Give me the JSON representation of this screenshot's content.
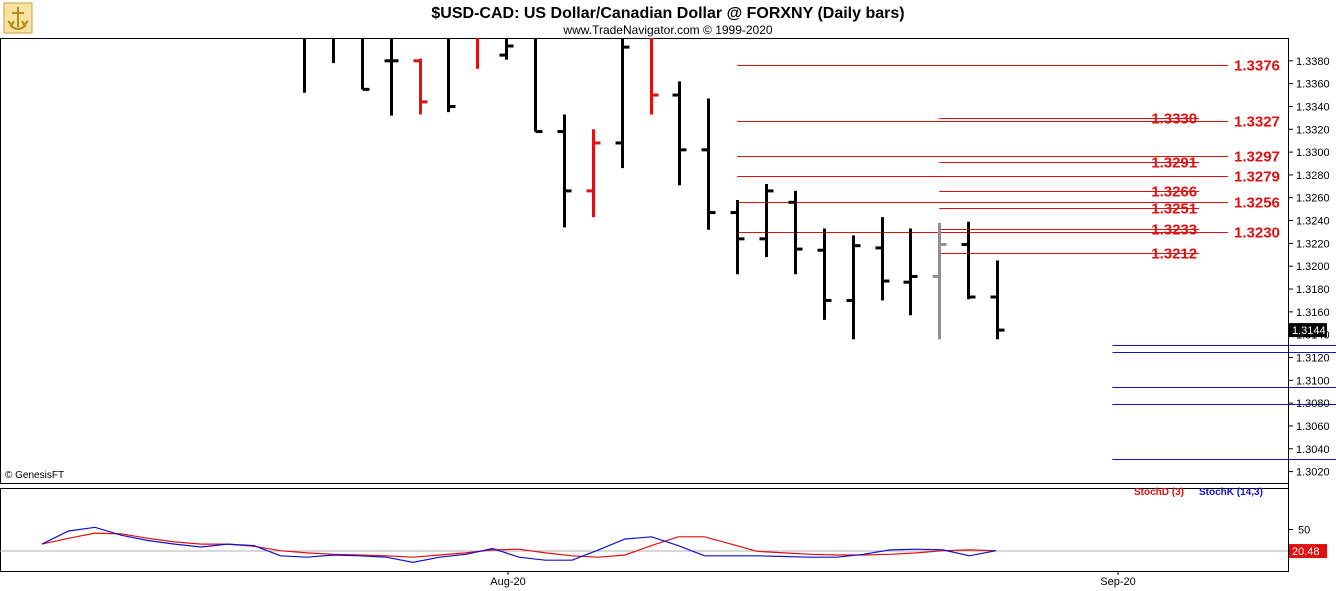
{
  "title": "$USD-CAD:  US Dollar/Canadian Dollar @ FORXNY  (Daily bars)",
  "subtitle": "www.TradeNavigator.com © 1999-2020",
  "copyright": "© GenesisFT",
  "colors": {
    "red": "#e01010",
    "blue": "#1010d0",
    "bar": "#000000",
    "gray": "#909090",
    "grid": "#c8c8c8"
  },
  "chart_data": [
    {
      "type": "ohlc",
      "title": "$USD-CAD:  US Dollar/Canadian Dollar @ FORXNY  (Daily bars)",
      "ylim": [
        1.301,
        1.34
      ],
      "y_ticks": [
        "1.3380",
        "1.3360",
        "1.3340",
        "1.3320",
        "1.3300",
        "1.3280",
        "1.3260",
        "1.3240",
        "1.3220",
        "1.3200",
        "1.3180",
        "1.3160",
        "1.3140",
        "1.3120",
        "1.3100",
        "1.3080",
        "1.3060",
        "1.3040",
        "1.3020"
      ],
      "x_ticks": [
        "Aug-20",
        "Sep-20"
      ],
      "last_price": "1.3144",
      "bars": [
        {
          "o": 1.34,
          "h": 1.34,
          "l": 1.3352,
          "c": 1.34,
          "color": "black"
        },
        {
          "o": 1.34,
          "h": 1.34,
          "l": 1.3378,
          "c": 1.34,
          "color": "black"
        },
        {
          "o": 1.34,
          "h": 1.34,
          "l": 1.3355,
          "c": 1.3355,
          "color": "black"
        },
        {
          "o": 1.338,
          "h": 1.34,
          "l": 1.3332,
          "c": 1.338,
          "color": "black"
        },
        {
          "o": 1.338,
          "h": 1.3382,
          "l": 1.3333,
          "c": 1.3344,
          "color": "red"
        },
        {
          "o": 1.34,
          "h": 1.34,
          "l": 1.3335,
          "c": 1.334,
          "color": "black"
        },
        {
          "o": 1.34,
          "h": 1.34,
          "l": 1.3373,
          "c": 1.34,
          "color": "red"
        },
        {
          "o": 1.3385,
          "h": 1.34,
          "l": 1.3381,
          "c": 1.3393,
          "color": "black"
        },
        {
          "o": 1.34,
          "h": 1.34,
          "l": 1.3318,
          "c": 1.3318,
          "color": "black"
        },
        {
          "o": 1.3318,
          "h": 1.3333,
          "l": 1.3234,
          "c": 1.3266,
          "color": "black"
        },
        {
          "o": 1.3266,
          "h": 1.332,
          "l": 1.3243,
          "c": 1.3308,
          "color": "red"
        },
        {
          "o": 1.3308,
          "h": 1.34,
          "l": 1.3286,
          "c": 1.3392,
          "color": "black"
        },
        {
          "o": 1.34,
          "h": 1.34,
          "l": 1.3333,
          "c": 1.335,
          "color": "red"
        },
        {
          "o": 1.335,
          "h": 1.3362,
          "l": 1.3271,
          "c": 1.3302,
          "color": "black"
        },
        {
          "o": 1.3302,
          "h": 1.3347,
          "l": 1.3232,
          "c": 1.3247,
          "color": "black"
        },
        {
          "o": 1.3247,
          "h": 1.3258,
          "l": 1.3193,
          "c": 1.3224,
          "color": "black"
        },
        {
          "o": 1.3224,
          "h": 1.3272,
          "l": 1.3208,
          "c": 1.3266,
          "color": "black"
        },
        {
          "o": 1.3256,
          "h": 1.3266,
          "l": 1.3193,
          "c": 1.3215,
          "color": "black"
        },
        {
          "o": 1.3214,
          "h": 1.3233,
          "l": 1.3153,
          "c": 1.317,
          "color": "black"
        },
        {
          "o": 1.317,
          "h": 1.3227,
          "l": 1.3136,
          "c": 1.3218,
          "color": "black"
        },
        {
          "o": 1.3216,
          "h": 1.3243,
          "l": 1.317,
          "c": 1.3187,
          "color": "black"
        },
        {
          "o": 1.3186,
          "h": 1.3233,
          "l": 1.3157,
          "c": 1.3191,
          "color": "black"
        },
        {
          "o": 1.3191,
          "h": 1.3238,
          "l": 1.3136,
          "c": 1.3219,
          "color": "gray"
        },
        {
          "o": 1.3219,
          "h": 1.3239,
          "l": 1.3171,
          "c": 1.3173,
          "color": "black"
        },
        {
          "o": 1.3173,
          "h": 1.3205,
          "l": 1.3136,
          "c": 1.3144,
          "color": "black"
        }
      ],
      "levels": [
        {
          "value": 1.3376,
          "label": "1.3376",
          "color": "red",
          "side": "right",
          "from": 15,
          "to": 32
        },
        {
          "value": 1.333,
          "label": "1.3330",
          "color": "red",
          "side": "left",
          "from": 22,
          "to": 31
        },
        {
          "value": 1.3327,
          "label": "1.3327",
          "color": "red",
          "side": "right",
          "from": 15,
          "to": 32
        },
        {
          "value": 1.3297,
          "label": "1.3297",
          "color": "red",
          "side": "right",
          "from": 15,
          "to": 32
        },
        {
          "value": 1.3291,
          "label": "1.3291",
          "color": "red",
          "side": "left",
          "from": 22,
          "to": 31
        },
        {
          "value": 1.3279,
          "label": "1.3279",
          "color": "red",
          "side": "right",
          "from": 15,
          "to": 32
        },
        {
          "value": 1.3266,
          "label": "1.3266",
          "color": "red",
          "side": "left",
          "from": 22,
          "to": 31
        },
        {
          "value": 1.3256,
          "label": "1.3256",
          "color": "red",
          "side": "right",
          "from": 15,
          "to": 32
        },
        {
          "value": 1.3251,
          "label": "1.3251",
          "color": "red",
          "side": "left",
          "from": 22,
          "to": 31
        },
        {
          "value": 1.3233,
          "label": "1.3233",
          "color": "red",
          "side": "left",
          "from": 22,
          "to": 31
        },
        {
          "value": 1.323,
          "label": "1.3230",
          "color": "red",
          "side": "right",
          "from": 15,
          "to": 32
        },
        {
          "value": 1.3212,
          "label": "1.3212",
          "color": "red",
          "side": "left",
          "from": 22,
          "to": 31
        },
        {
          "value": 1.3131,
          "label": "1.3131",
          "color": "blue",
          "side": "right",
          "from": 28,
          "to": 41
        },
        {
          "value": 1.3125,
          "label": "1.3125",
          "color": "blue",
          "side": "left",
          "from": 28,
          "to": 41
        },
        {
          "value": 1.3094,
          "label": "1.3094",
          "color": "blue",
          "side": "left",
          "from": 28,
          "to": 41
        },
        {
          "value": 1.3079,
          "label": "1.3079",
          "color": "blue",
          "side": "right",
          "from": 28,
          "to": 41
        },
        {
          "value": 1.3031,
          "label": "1.3031",
          "color": "blue",
          "side": "left",
          "from": 28,
          "to": 41
        }
      ]
    },
    {
      "type": "line",
      "series": [
        {
          "name": "StochD (3)",
          "color": "red",
          "values": [
            30,
            38,
            45,
            44,
            38,
            33,
            30,
            30,
            27,
            21,
            18,
            16,
            15,
            14,
            12,
            15,
            18,
            22,
            23,
            18,
            14,
            12,
            15,
            28,
            40,
            40,
            30,
            20,
            18,
            16,
            15,
            15,
            16,
            18,
            21,
            22,
            21
          ]
        },
        {
          "name": "StochK (14,3)",
          "color": "blue",
          "values": [
            30,
            48,
            53,
            42,
            35,
            30,
            26,
            30,
            28,
            14,
            12,
            15,
            14,
            12,
            5,
            12,
            16,
            24,
            12,
            8,
            8,
            22,
            37,
            40,
            28,
            14,
            14,
            14,
            13,
            12,
            12,
            16,
            22,
            23,
            22,
            14,
            21
          ]
        }
      ],
      "y_ticks": [
        "50"
      ],
      "last_value": "20.48"
    }
  ]
}
